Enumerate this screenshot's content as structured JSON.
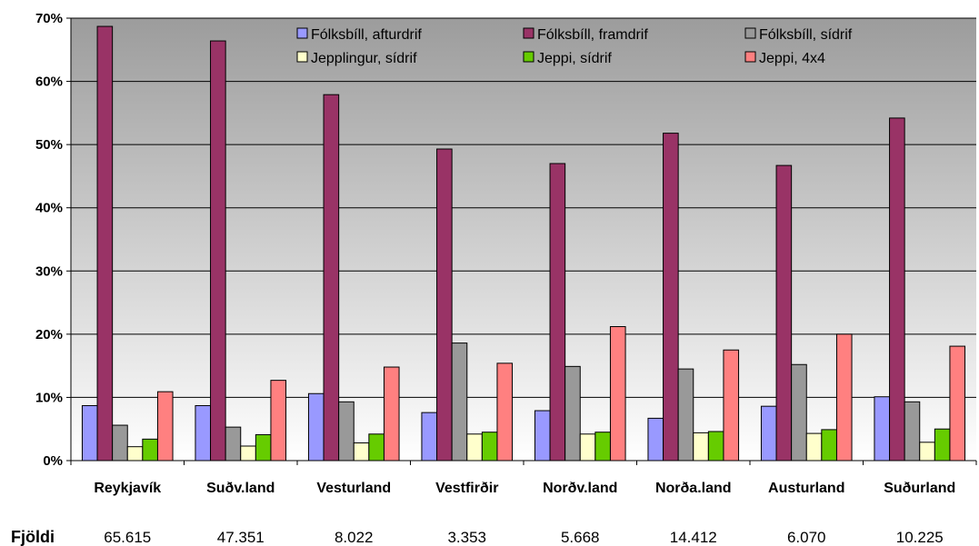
{
  "chart_data": {
    "type": "bar",
    "categories": [
      "Reykjavík",
      "Suðv.land",
      "Vesturland",
      "Vestfirðir",
      "Norðv.land",
      "Norða.land",
      "Austurland",
      "Suðurland"
    ],
    "ylim": [
      0,
      70
    ],
    "yticks": [
      "0%",
      "10%",
      "20%",
      "30%",
      "40%",
      "50%",
      "60%",
      "70%"
    ],
    "ytick_values": [
      0,
      10,
      20,
      30,
      40,
      50,
      60,
      70
    ],
    "grid": true,
    "legend_position": "top-right",
    "series": [
      {
        "name": "Fólksbíll, afturdrif",
        "color": "#9999ff",
        "values": [
          8.7,
          8.7,
          10.6,
          7.6,
          7.9,
          6.7,
          8.6,
          10.1
        ]
      },
      {
        "name": "Fólksbíll, framdrif",
        "color": "#993366",
        "values": [
          68.7,
          66.4,
          57.9,
          49.3,
          47.0,
          51.8,
          46.7,
          54.2
        ]
      },
      {
        "name": "Fólksbíll, sídrif",
        "color": "#999999",
        "values": [
          5.6,
          5.3,
          9.3,
          18.6,
          14.9,
          14.5,
          15.2,
          9.3
        ]
      },
      {
        "name": "Jepplingur, sídrif",
        "color": "#ffffcc",
        "values": [
          2.2,
          2.3,
          2.8,
          4.2,
          4.2,
          4.4,
          4.3,
          2.9
        ]
      },
      {
        "name": "Jeppi, sídrif",
        "color": "#66cc00",
        "values": [
          3.4,
          4.1,
          4.2,
          4.5,
          4.5,
          4.6,
          4.9,
          5.0
        ]
      },
      {
        "name": "Jeppi, 4x4",
        "color": "#ff8080",
        "values": [
          10.9,
          12.7,
          14.8,
          15.4,
          21.2,
          17.5,
          20.0,
          18.1
        ]
      }
    ],
    "count_label": "Fjöldi",
    "counts": [
      "65.615",
      "47.351",
      "8.022",
      "3.353",
      "5.668",
      "14.412",
      "6.070",
      "10.225"
    ]
  }
}
